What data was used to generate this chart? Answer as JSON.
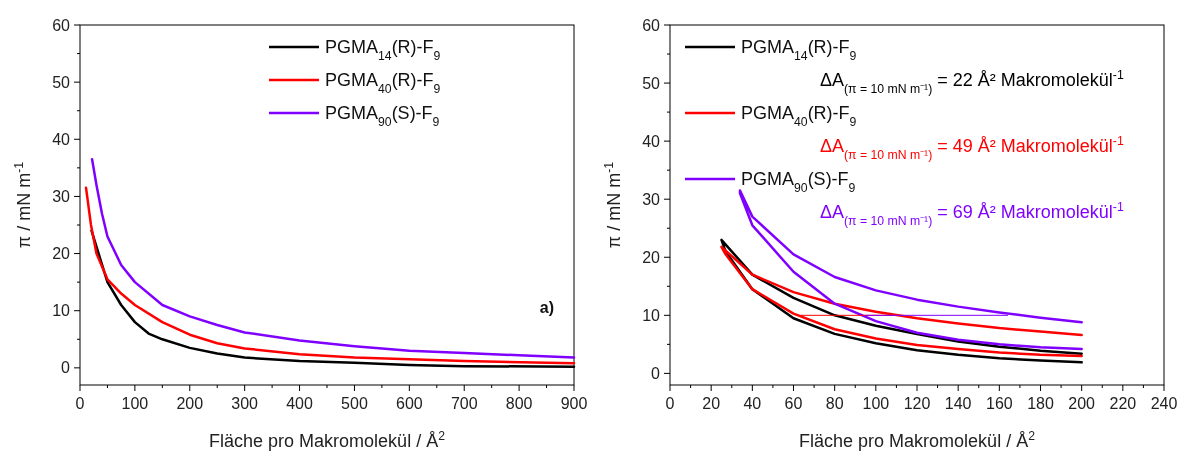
{
  "chart_data": [
    {
      "type": "line",
      "xlabel": "Fläche pro Makromolekül / Å$^{2}$",
      "ylabel": "π / mN m$^{-1}$",
      "xlim": [
        0,
        900
      ],
      "ylim": [
        -3,
        60
      ],
      "xticks": [
        0,
        100,
        200,
        300,
        400,
        500,
        600,
        700,
        800,
        900
      ],
      "yticks": [
        0,
        10,
        20,
        30,
        40,
        50,
        60
      ],
      "legend": "top right",
      "annotations": [
        "a)"
      ],
      "series": [
        {
          "name": "PGMA$_{14}$(R)-F$_{9}$",
          "color": "#000000",
          "x": [
            21,
            50,
            75,
            100,
            125,
            150,
            200,
            250,
            300,
            400,
            500,
            600,
            700,
            900
          ],
          "values": [
            24,
            15,
            11,
            8,
            6,
            5,
            3.5,
            2.5,
            1.8,
            1.2,
            0.9,
            0.5,
            0.3,
            0.2
          ]
        },
        {
          "name": "PGMA$_{40}$(R)-F$_{9}$",
          "color": "#ff0000",
          "x": [
            11,
            20,
            30,
            50,
            75,
            100,
            150,
            200,
            250,
            300,
            400,
            500,
            600,
            700,
            900
          ],
          "values": [
            31.5,
            25,
            20,
            15.5,
            13,
            11,
            8,
            5.8,
            4.3,
            3.4,
            2.4,
            1.8,
            1.5,
            1.2,
            0.8
          ]
        },
        {
          "name": "PGMA$_{90}$(S)-F$_{9}$",
          "color": "#8000ff",
          "x": [
            22,
            30,
            40,
            50,
            75,
            100,
            150,
            200,
            250,
            300,
            400,
            500,
            600,
            700,
            800,
            900
          ],
          "values": [
            36.5,
            32,
            27,
            23,
            18,
            15,
            11,
            9,
            7.5,
            6.2,
            4.8,
            3.8,
            3,
            2.6,
            2.2,
            1.8
          ]
        }
      ]
    },
    {
      "type": "line",
      "xlabel": "Fläche pro Makromolekül / Å$^{2}$",
      "ylabel": "π / mN m$^{-1}$",
      "xlim": [
        0,
        240
      ],
      "ylim": [
        -2,
        60
      ],
      "xticks": [
        0,
        20,
        40,
        60,
        80,
        100,
        120,
        140,
        160,
        180,
        200,
        220,
        240
      ],
      "yticks": [
        0,
        10,
        20,
        30,
        40,
        50,
        60
      ],
      "legend": "top left",
      "annotations": [
        "ΔA$_{(π = 10 mN m⁻¹)}$ =  22 Å² Makromolekül$^{-1}$",
        "ΔA$_{(π = 10 mN m⁻¹)}$ =  49 Å² Makromolekül$^{-1}$",
        "ΔA$_{(π = 10 mN m⁻¹)}$ =  69 Å² Makromolekül$^{-1}$"
      ],
      "series": [
        {
          "name": "PGMA$_{14}$(R)-F$_{9}$",
          "color": "#000000",
          "x": [
            200,
            180,
            160,
            140,
            120,
            100,
            80,
            60,
            40,
            25,
            27,
            40,
            60,
            80,
            100,
            120,
            140,
            160,
            180,
            200
          ],
          "values": [
            3.4,
            3.9,
            4.6,
            5.5,
            6.8,
            8.2,
            10,
            13,
            17,
            23,
            21,
            14.5,
            9.5,
            6.8,
            5.2,
            4,
            3.2,
            2.6,
            2.2,
            1.9
          ]
        },
        {
          "name": "PGMA$_{40}$(R)-F$_{9}$",
          "color": "#ff0000",
          "x": [
            200,
            180,
            160,
            140,
            120,
            100,
            80,
            60,
            40,
            25,
            27,
            40,
            60,
            80,
            100,
            120,
            140,
            160,
            180,
            200
          ],
          "values": [
            6.6,
            7.2,
            7.8,
            8.6,
            9.5,
            10.6,
            12,
            14,
            17,
            21.8,
            20.5,
            14.5,
            10.3,
            7.6,
            6,
            4.9,
            4.2,
            3.6,
            3.2,
            3
          ]
        },
        {
          "name": "PGMA$_{90}$(S)-F$_{9}$",
          "color": "#8000ff",
          "x": [
            200,
            180,
            160,
            140,
            120,
            100,
            80,
            60,
            40,
            34,
            34,
            40,
            60,
            80,
            100,
            120,
            140,
            160,
            180,
            200
          ],
          "values": [
            8.8,
            9.6,
            10.5,
            11.5,
            12.7,
            14.3,
            16.6,
            20.5,
            27,
            31.5,
            31,
            25.5,
            17.5,
            12,
            9,
            7,
            5.8,
            5,
            4.5,
            4.2
          ]
        },
        {
          "color": "#ff0000",
          "x": [
            62,
            111
          ],
          "values": [
            10,
            10
          ]
        },
        {
          "color": "#8000ff",
          "x": [
            95,
            164
          ],
          "values": [
            10,
            10
          ]
        }
      ]
    }
  ]
}
